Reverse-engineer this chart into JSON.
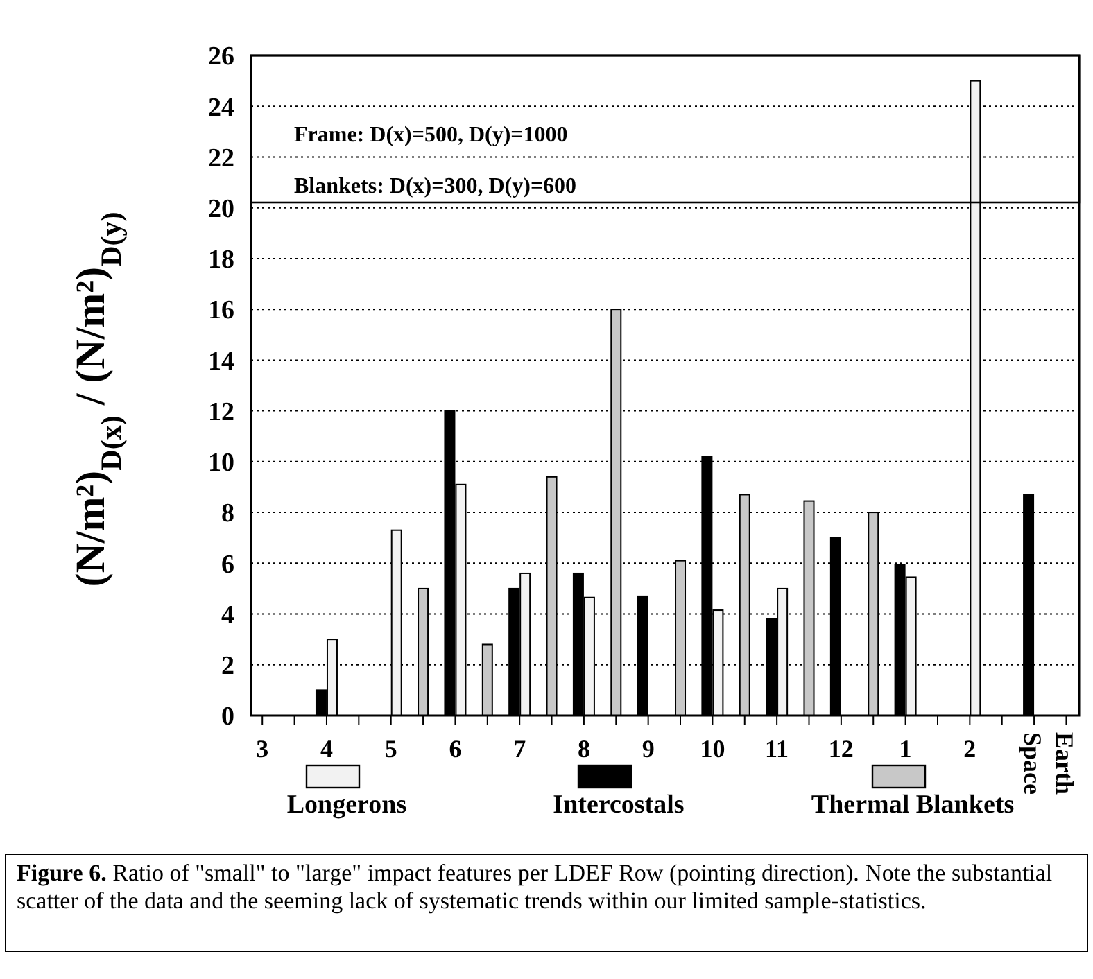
{
  "chart_data": {
    "type": "bar",
    "ylabel": "(N/m²)$_{D(x)}$ / (N/m²)$_{D(y)}$",
    "categories": [
      "3",
      null,
      "4",
      null,
      "5",
      null,
      "6",
      null,
      "7",
      null,
      "8",
      null,
      "9",
      null,
      "10",
      null,
      "11",
      null,
      "12",
      null,
      "1",
      null,
      "2",
      null,
      "Space",
      "Earth"
    ],
    "series": [
      {
        "name": "Longerons",
        "color": "#f2f2f2",
        "values": [
          null,
          null,
          3.0,
          null,
          7.3,
          null,
          9.1,
          null,
          5.6,
          null,
          4.65,
          null,
          null,
          null,
          4.15,
          null,
          5.0,
          null,
          null,
          null,
          5.45,
          null,
          25,
          null,
          null,
          null
        ]
      },
      {
        "name": "Intercostals",
        "color": "#000000",
        "values": [
          null,
          null,
          1.0,
          null,
          null,
          null,
          12.0,
          null,
          5.0,
          null,
          5.6,
          null,
          4.7,
          null,
          10.2,
          null,
          3.8,
          null,
          7.0,
          null,
          5.95,
          null,
          null,
          null,
          8.7,
          null
        ]
      },
      {
        "name": "Thermal Blankets",
        "color": "#c8c8c8",
        "values": [
          null,
          null,
          null,
          null,
          null,
          5.0,
          null,
          2.8,
          null,
          9.4,
          null,
          16,
          null,
          6.1,
          null,
          8.7,
          null,
          8.45,
          null,
          8.0,
          null,
          null,
          null,
          null,
          null,
          null
        ]
      }
    ],
    "ylim": [
      0,
      26
    ],
    "yticks": [
      0,
      2,
      4,
      6,
      8,
      10,
      12,
      14,
      16,
      18,
      20,
      22,
      24,
      26
    ],
    "grid": "y",
    "legend": "bottom",
    "annotations": [
      "Frame: D(x)=500, D(y)=1000",
      "Blankets: D(x)=300, D(y)=600",
      "Figure 6.  Ratio of \"small\" to \"large\" impact features per LDEF Row (pointing direction). Note the substantial scatter of the data and the seeming lack of systematic trends within our limited sample-statistics."
    ]
  }
}
